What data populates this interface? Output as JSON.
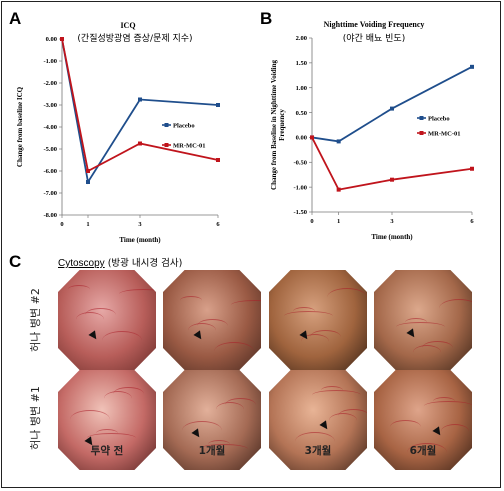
{
  "panels": {
    "a_letter": "A",
    "b_letter": "B",
    "c_letter": "C"
  },
  "chart_data": [
    {
      "type": "line",
      "title": "ICQ",
      "subtitle": "(간질성방광염 증상/문제 지수)",
      "xlabel": "Time (month)",
      "ylabel": "Change from baseline ICQ",
      "x": [
        0,
        1,
        3,
        6
      ],
      "x_ticks": [
        "0",
        "1",
        "3",
        "6"
      ],
      "ylim": [
        -8.0,
        0.0
      ],
      "y_ticks": [
        "0.00",
        "-1.00",
        "-2.00",
        "-3.00",
        "-4.00",
        "-5.00",
        "-6.00",
        "-7.00",
        "-8.00"
      ],
      "legend_position": "right",
      "series": [
        {
          "name": "Placebo",
          "color": "#1f4e8c",
          "marker": "square",
          "values": [
            0.0,
            -6.5,
            -2.75,
            -3.0
          ]
        },
        {
          "name": "MR-MC-01",
          "color": "#c0141c",
          "marker": "square",
          "values": [
            0.0,
            -6.0,
            -4.75,
            -5.5
          ]
        }
      ]
    },
    {
      "type": "line",
      "title": "Nighttime Voiding Frequency",
      "subtitle": "(야간 배뇨 빈도)",
      "xlabel": "Time (month)",
      "ylabel": "Change from Baseline in Nighttime Voiding Frequency",
      "x": [
        0,
        1,
        3,
        6
      ],
      "x_ticks": [
        "0",
        "1",
        "3",
        "6"
      ],
      "ylim": [
        -1.5,
        2.0
      ],
      "y_ticks": [
        "2.00",
        "1.50",
        "1.00",
        "0.50",
        "0.00",
        "-0.50",
        "-1.00",
        "-1.50"
      ],
      "legend_position": "right",
      "series": [
        {
          "name": "Placebo",
          "color": "#1f4e8c",
          "marker": "square",
          "values": [
            0.0,
            -0.08,
            0.58,
            1.42
          ]
        },
        {
          "name": "MR-MC-01",
          "color": "#c0141c",
          "marker": "square",
          "values": [
            0.0,
            -1.05,
            -0.85,
            -0.63
          ]
        }
      ]
    }
  ],
  "cytoscopy": {
    "title_en": "Cytoscopy",
    "title_ko": " (방광 내시경 검사)",
    "rows": [
      "허나 병변 #2",
      "허나 병변 #1"
    ],
    "columns": [
      "투약 전",
      "1개월",
      "3개월",
      "6개월"
    ]
  },
  "colors": {
    "placebo": "#1f4e8c",
    "mrmc": "#c0141c"
  }
}
